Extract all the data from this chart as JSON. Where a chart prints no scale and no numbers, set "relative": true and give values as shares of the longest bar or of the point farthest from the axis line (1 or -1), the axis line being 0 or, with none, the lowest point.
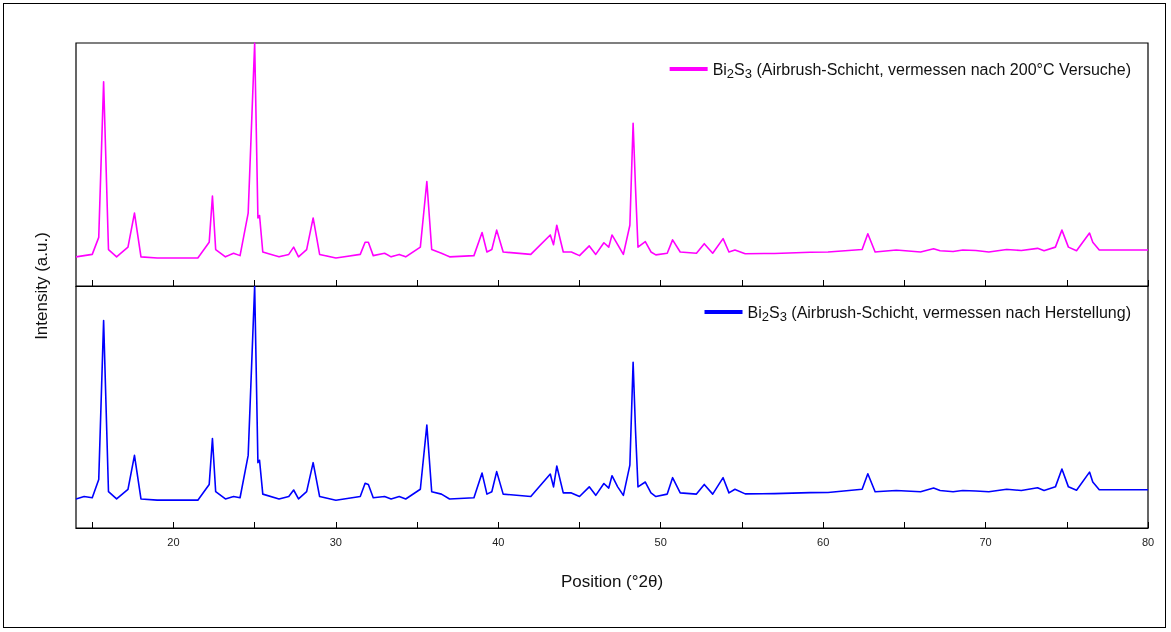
{
  "chart_data": [
    {
      "type": "line",
      "relative": true,
      "ylabel": "Intensity (a.u.)",
      "legend": "top right",
      "tick_labels": false,
      "xlim": [
        14,
        80
      ],
      "xticks": [
        {
          "value": 15,
          "label": null
        },
        20,
        {
          "value": 25,
          "label": null
        },
        30,
        {
          "value": 35,
          "label": null
        },
        40,
        {
          "value": 45,
          "label": null
        },
        50,
        {
          "value": 55,
          "label": null
        },
        60,
        {
          "value": 65,
          "label": null
        },
        70,
        {
          "value": 75,
          "label": null
        },
        80
      ],
      "series": [
        {
          "name": "Bi$_{2}$S$_{3}$ (Airbrush-Schicht, vermessen nach 200°C Versuche)",
          "color": "#ff00ff",
          "x": [
            14,
            14.5,
            15,
            15.4,
            15.7,
            16.0,
            16.5,
            17.2,
            17.6,
            18.0,
            19,
            21.5,
            22.2,
            22.4,
            22.6,
            23.2,
            23.7,
            24.1,
            24.6,
            25.0,
            25.2,
            25.3,
            25.5,
            26.5,
            27.1,
            27.4,
            27.7,
            28.2,
            28.6,
            29.0,
            30,
            31.5,
            31.8,
            32.0,
            32.3,
            33.0,
            33.4,
            33.9,
            34.3,
            35.2,
            35.6,
            35.9,
            36.5,
            37,
            38.5,
            39.0,
            39.3,
            39.6,
            39.9,
            40.3,
            42.0,
            43.2,
            43.4,
            43.6,
            44.0,
            44.5,
            45.0,
            45.6,
            46.0,
            46.5,
            46.8,
            47.0,
            47.35,
            47.7,
            48.1,
            48.3,
            48.45,
            48.6,
            49.05,
            49.4,
            49.7,
            50.4,
            50.73,
            51.2,
            52.2,
            52.68,
            53.2,
            53.84,
            54.2,
            54.57,
            55.2,
            57,
            59.2,
            60.3,
            62.4,
            62.75,
            63.2,
            64.5,
            66,
            66.8,
            67.2,
            68,
            68.6,
            69.4,
            70.2,
            71.3,
            72.2,
            73.2,
            73.6,
            74.3,
            74.7,
            75.1,
            75.6,
            76.4,
            76.6,
            77,
            78.5,
            80
          ],
          "values": [
            0.12,
            0.125,
            0.13,
            0.2,
            0.84,
            0.15,
            0.12,
            0.16,
            0.3,
            0.12,
            0.115,
            0.115,
            0.18,
            0.37,
            0.15,
            0.12,
            0.135,
            0.125,
            0.3,
            1.0,
            0.28,
            0.29,
            0.14,
            0.12,
            0.13,
            0.16,
            0.12,
            0.15,
            0.28,
            0.13,
            0.115,
            0.13,
            0.18,
            0.18,
            0.125,
            0.135,
            0.12,
            0.13,
            0.12,
            0.16,
            0.43,
            0.15,
            0.135,
            0.12,
            0.125,
            0.22,
            0.14,
            0.15,
            0.23,
            0.14,
            0.13,
            0.21,
            0.17,
            0.25,
            0.14,
            0.14,
            0.125,
            0.165,
            0.13,
            0.178,
            0.16,
            0.21,
            0.17,
            0.13,
            0.25,
            0.67,
            0.4,
            0.16,
            0.183,
            0.14,
            0.128,
            0.135,
            0.19,
            0.14,
            0.135,
            0.174,
            0.135,
            0.195,
            0.14,
            0.148,
            0.133,
            0.134,
            0.139,
            0.14,
            0.15,
            0.215,
            0.14,
            0.148,
            0.14,
            0.153,
            0.145,
            0.142,
            0.148,
            0.146,
            0.14,
            0.15,
            0.146,
            0.155,
            0.145,
            0.16,
            0.23,
            0.16,
            0.145,
            0.218,
            0.18,
            0.148,
            0.148,
            0.148
          ]
        }
      ]
    },
    {
      "type": "line",
      "relative": true,
      "xlabel": "Position (°2θ)",
      "legend": "top right",
      "tick_labels": "x",
      "xlim": [
        14,
        80
      ],
      "xticks": [
        {
          "value": 15,
          "label": null
        },
        20,
        {
          "value": 25,
          "label": null
        },
        30,
        {
          "value": 35,
          "label": null
        },
        40,
        {
          "value": 45,
          "label": null
        },
        50,
        {
          "value": 55,
          "label": null
        },
        60,
        {
          "value": 65,
          "label": null
        },
        70,
        {
          "value": 75,
          "label": null
        },
        80
      ],
      "series": [
        {
          "name": "Bi$_{2}$S$_{3}$ (Airbrush-Schicht, vermessen nach Herstellung)",
          "color": "#0000ff",
          "x": [
            14,
            14.5,
            15,
            15.4,
            15.7,
            16.0,
            16.5,
            17.2,
            17.6,
            18.0,
            19,
            21.5,
            22.2,
            22.4,
            22.6,
            23.2,
            23.7,
            24.1,
            24.6,
            25.0,
            25.2,
            25.3,
            25.5,
            26.5,
            27.1,
            27.4,
            27.7,
            28.2,
            28.6,
            29.0,
            30,
            31.5,
            31.8,
            32.0,
            32.3,
            33.0,
            33.4,
            33.9,
            34.3,
            35.2,
            35.6,
            35.9,
            36.5,
            37,
            38.5,
            39.0,
            39.3,
            39.6,
            39.9,
            40.3,
            42.0,
            43.2,
            43.4,
            43.6,
            44.0,
            44.5,
            45.0,
            45.6,
            46.0,
            46.5,
            46.8,
            47.0,
            47.35,
            47.7,
            48.1,
            48.3,
            48.45,
            48.6,
            49.05,
            49.4,
            49.7,
            50.4,
            50.73,
            51.2,
            52.2,
            52.68,
            53.2,
            53.84,
            54.2,
            54.57,
            55.2,
            57,
            59.2,
            60.3,
            62.4,
            62.75,
            63.2,
            64.5,
            66,
            66.8,
            67.2,
            68,
            68.6,
            69.4,
            70.2,
            71.3,
            72.2,
            73.2,
            73.6,
            74.3,
            74.7,
            75.1,
            75.6,
            76.4,
            76.6,
            77,
            78.5,
            80
          ],
          "values": [
            0.12,
            0.13,
            0.125,
            0.2,
            0.857,
            0.15,
            0.12,
            0.16,
            0.3,
            0.12,
            0.115,
            0.115,
            0.18,
            0.37,
            0.15,
            0.12,
            0.13,
            0.125,
            0.3,
            1.0,
            0.27,
            0.28,
            0.14,
            0.12,
            0.13,
            0.157,
            0.12,
            0.15,
            0.27,
            0.13,
            0.115,
            0.13,
            0.185,
            0.18,
            0.125,
            0.13,
            0.12,
            0.13,
            0.12,
            0.16,
            0.425,
            0.15,
            0.14,
            0.12,
            0.125,
            0.227,
            0.14,
            0.15,
            0.233,
            0.14,
            0.13,
            0.223,
            0.17,
            0.256,
            0.145,
            0.145,
            0.13,
            0.17,
            0.135,
            0.184,
            0.165,
            0.216,
            0.17,
            0.135,
            0.26,
            0.685,
            0.4,
            0.17,
            0.19,
            0.145,
            0.13,
            0.14,
            0.208,
            0.145,
            0.14,
            0.18,
            0.14,
            0.208,
            0.145,
            0.16,
            0.141,
            0.142,
            0.146,
            0.147,
            0.16,
            0.224,
            0.15,
            0.155,
            0.15,
            0.165,
            0.155,
            0.15,
            0.155,
            0.153,
            0.15,
            0.16,
            0.155,
            0.166,
            0.155,
            0.17,
            0.244,
            0.17,
            0.156,
            0.231,
            0.19,
            0.158,
            0.158,
            0.158
          ]
        }
      ]
    }
  ]
}
